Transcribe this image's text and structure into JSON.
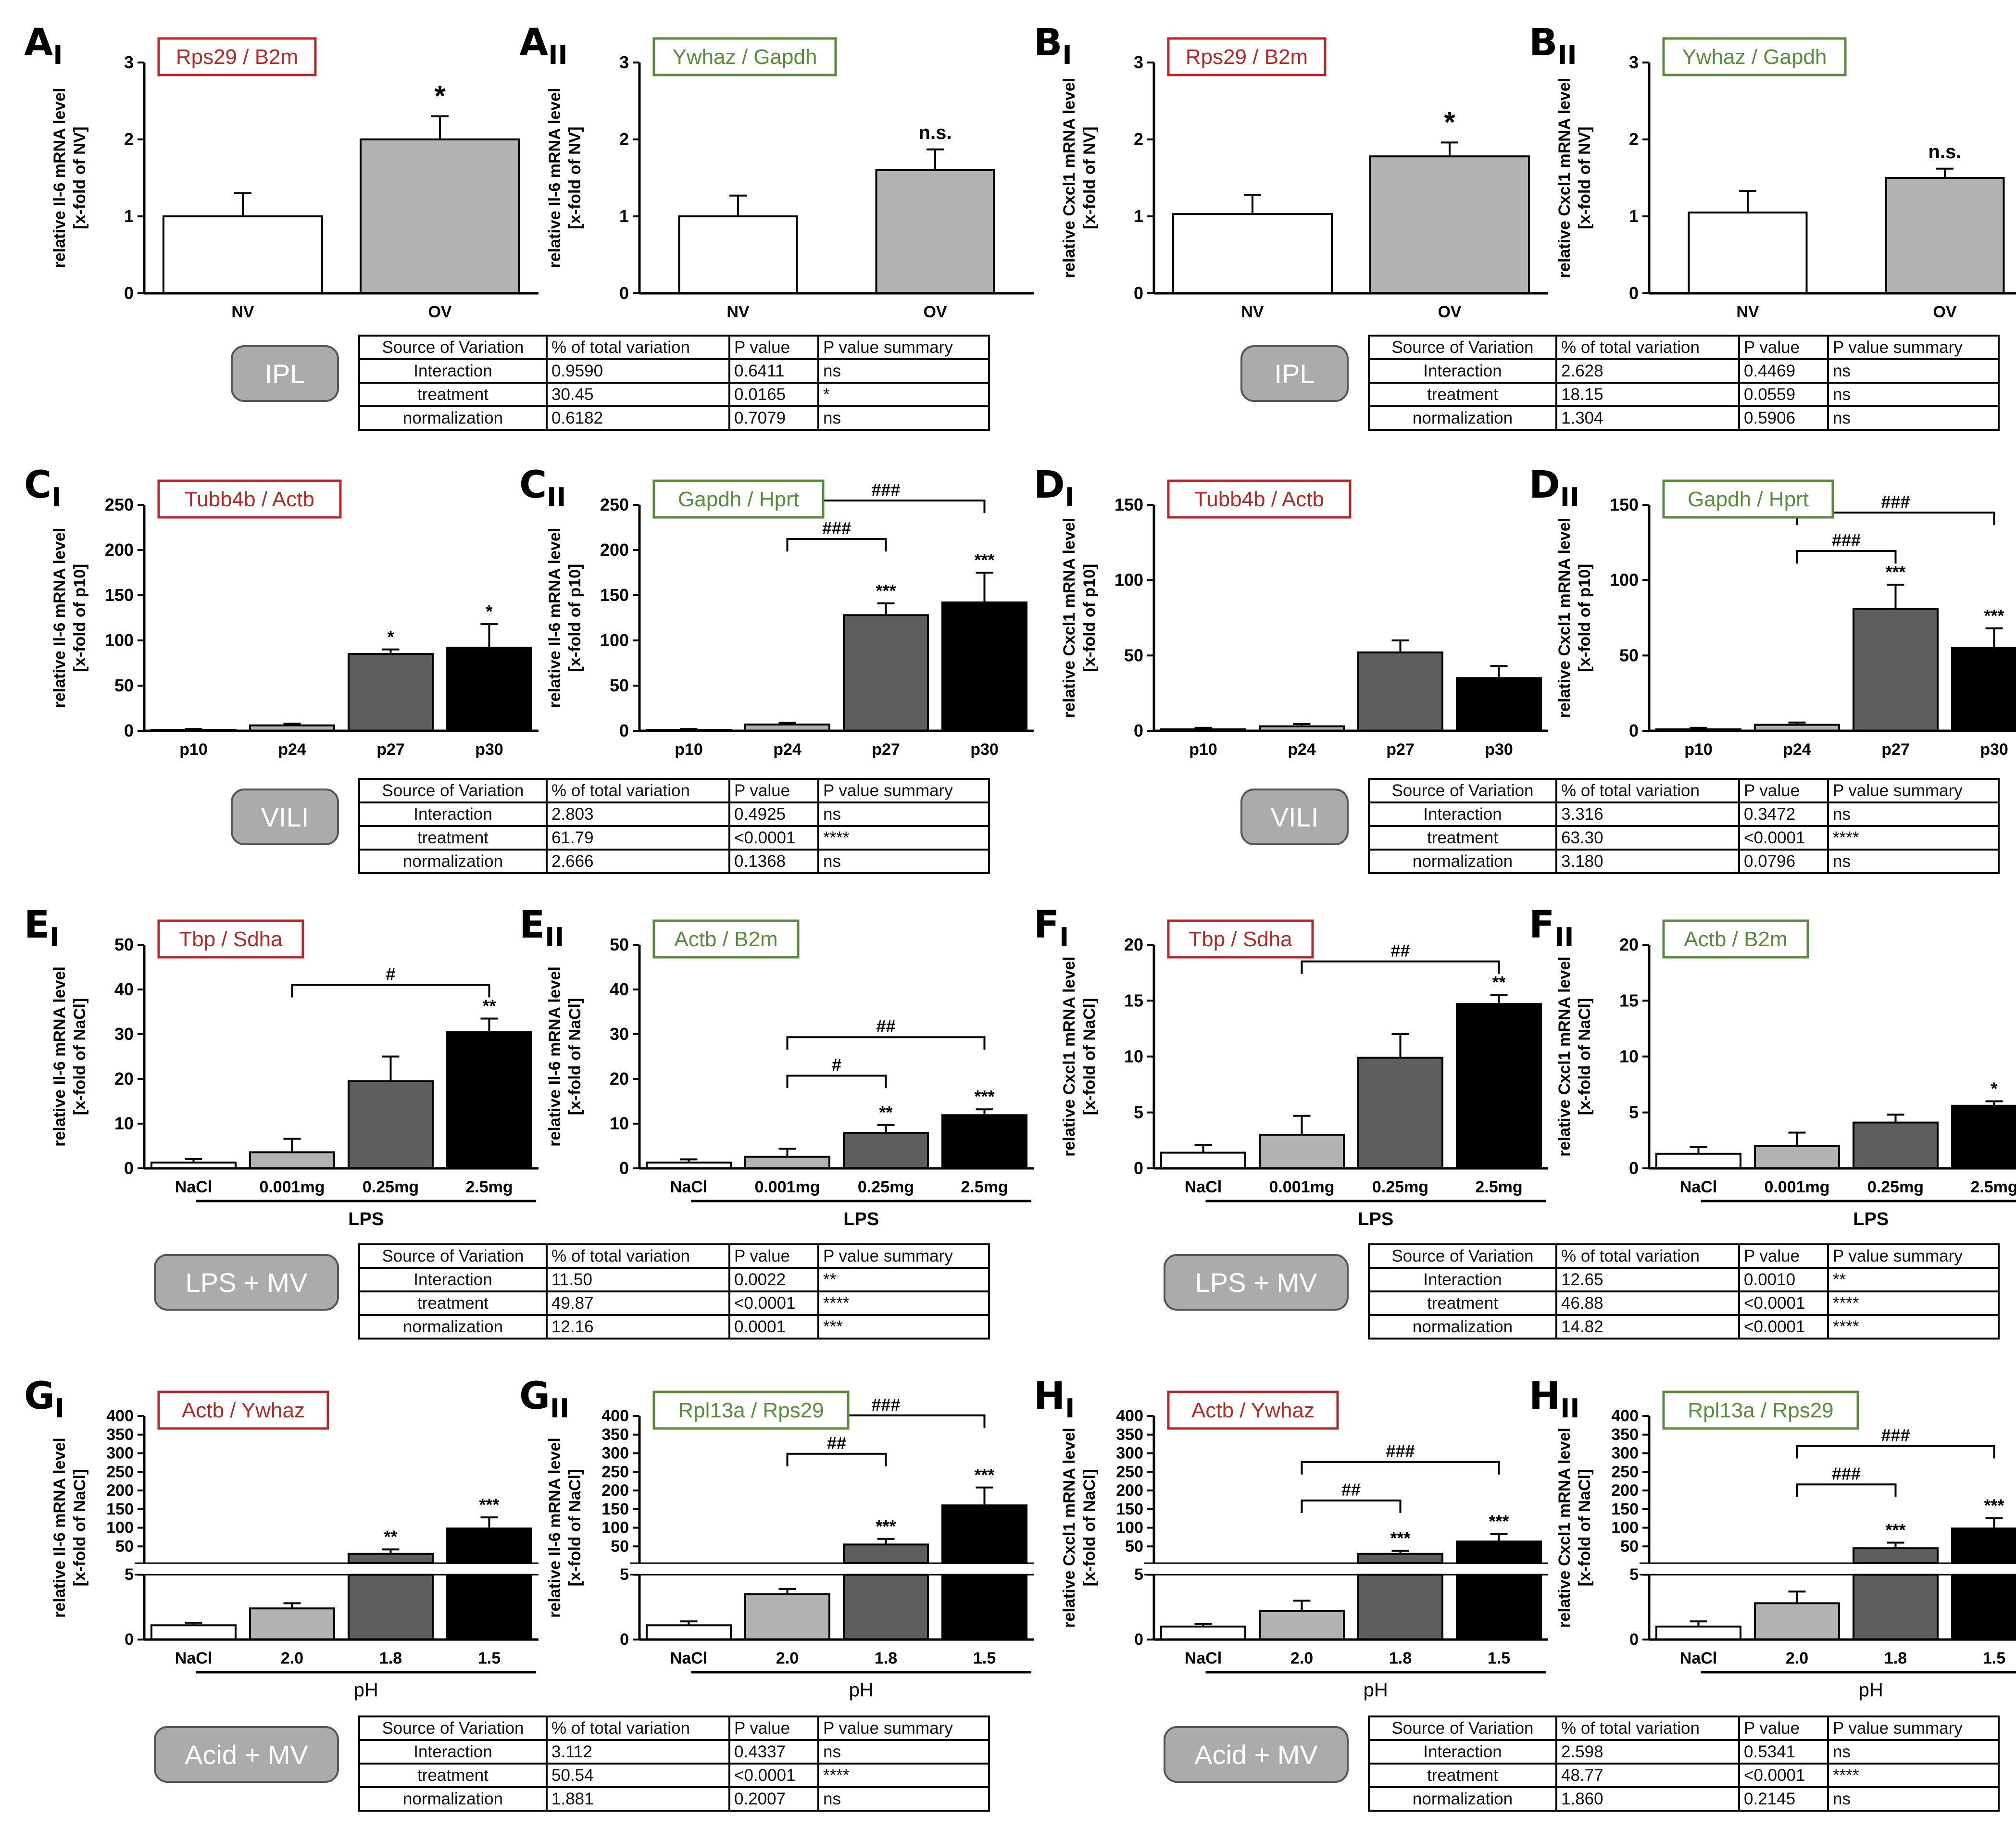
{
  "col_headers": [
    "Source of Variation",
    "% of total variation",
    "P value",
    "P value summary"
  ],
  "rows": [
    {
      "id": "AB",
      "groups": [
        "IPL",
        "IPL"
      ],
      "tables": [
        [
          [
            "Interaction",
            "0.9590",
            "0.6411",
            "ns"
          ],
          [
            "treatment",
            "30.45",
            "0.0165",
            "*"
          ],
          [
            "normalization",
            "0.6182",
            "0.7079",
            "ns"
          ]
        ],
        [
          [
            "Interaction",
            "2.628",
            "0.4469",
            "ns"
          ],
          [
            "treatment",
            "18.15",
            "0.0559",
            "ns"
          ],
          [
            "normalization",
            "1.304",
            "0.5906",
            "ns"
          ]
        ]
      ]
    },
    {
      "id": "CD",
      "groups": [
        "VILI",
        "VILI"
      ],
      "tables": [
        [
          [
            "Interaction",
            "2.803",
            "0.4925",
            "ns"
          ],
          [
            "treatment",
            "61.79",
            "<0.0001",
            "****"
          ],
          [
            "normalization",
            "2.666",
            "0.1368",
            "ns"
          ]
        ],
        [
          [
            "Interaction",
            "3.316",
            "0.3472",
            "ns"
          ],
          [
            "treatment",
            "63.30",
            "<0.0001",
            "****"
          ],
          [
            "normalization",
            "3.180",
            "0.0796",
            "ns"
          ]
        ]
      ]
    },
    {
      "id": "EF",
      "groups": [
        "LPS + MV",
        "LPS + MV"
      ],
      "tables": [
        [
          [
            "Interaction",
            "11.50",
            "0.0022",
            "**"
          ],
          [
            "treatment",
            "49.87",
            "<0.0001",
            "****"
          ],
          [
            "normalization",
            "12.16",
            "0.0001",
            "***"
          ]
        ],
        [
          [
            "Interaction",
            "12.65",
            "0.0010",
            "**"
          ],
          [
            "treatment",
            "46.88",
            "<0.0001",
            "****"
          ],
          [
            "normalization",
            "14.82",
            "<0.0001",
            "****"
          ]
        ]
      ]
    },
    {
      "id": "GH",
      "groups": [
        "Acid + MV",
        "Acid + MV"
      ],
      "tables": [
        [
          [
            "Interaction",
            "3.112",
            "0.4337",
            "ns"
          ],
          [
            "treatment",
            "50.54",
            "<0.0001",
            "****"
          ],
          [
            "normalization",
            "1.881",
            "0.2007",
            "ns"
          ]
        ],
        [
          [
            "Interaction",
            "2.598",
            "0.5341",
            "ns"
          ],
          [
            "treatment",
            "48.77",
            "<0.0001",
            "****"
          ],
          [
            "normalization",
            "1.860",
            "0.2145",
            "ns"
          ]
        ]
      ]
    }
  ],
  "colors": {
    "white": "#ffffff",
    "light": "#b2b2b4",
    "mid": "#5e5e60",
    "dark": "#000000",
    "red": "#b02a2a",
    "green": "#5a8a3c"
  },
  "chart_data": [
    {
      "panel": "A",
      "sub": "I",
      "type": "bar",
      "ref": "Rps29 / B2m",
      "ref_color": "red",
      "ylabel": [
        "relative Il-6 mRNA level",
        "[x-fold of NV]"
      ],
      "categories": [
        "NV",
        "OV"
      ],
      "values": [
        1.0,
        2.0
      ],
      "errors": [
        0.3,
        0.3
      ],
      "bar_colors": [
        "white",
        "light"
      ],
      "stars": [
        "",
        "*"
      ],
      "ylim": [
        0,
        3
      ],
      "yticks": [
        "0",
        "1",
        "2",
        "3"
      ]
    },
    {
      "panel": "A",
      "sub": "II",
      "type": "bar",
      "ref": "Ywhaz / Gapdh",
      "ref_color": "green",
      "ylabel": [
        "relative Il-6 mRNA level",
        "[x-fold of NV]"
      ],
      "categories": [
        "NV",
        "OV"
      ],
      "values": [
        1.0,
        1.6
      ],
      "errors": [
        0.27,
        0.27
      ],
      "bar_colors": [
        "white",
        "light"
      ],
      "stars": [
        "",
        "n.s."
      ],
      "ylim": [
        0,
        3
      ],
      "yticks": [
        "0",
        "1",
        "2",
        "3"
      ]
    },
    {
      "panel": "B",
      "sub": "I",
      "type": "bar",
      "ref": "Rps29 / B2m",
      "ref_color": "red",
      "ylabel": [
        "relative Cxcl1 mRNA level",
        "[x-fold of NV]"
      ],
      "categories": [
        "NV",
        "OV"
      ],
      "values": [
        1.03,
        1.78
      ],
      "errors": [
        0.25,
        0.18
      ],
      "bar_colors": [
        "white",
        "light"
      ],
      "stars": [
        "",
        "*"
      ],
      "ylim": [
        0,
        3
      ],
      "yticks": [
        "0",
        "1",
        "2",
        "3"
      ]
    },
    {
      "panel": "B",
      "sub": "II",
      "type": "bar",
      "ref": "Ywhaz / Gapdh",
      "ref_color": "green",
      "ylabel": [
        "relative Cxcl1 mRNA level",
        "[x-fold of NV]"
      ],
      "categories": [
        "NV",
        "OV"
      ],
      "values": [
        1.05,
        1.5
      ],
      "errors": [
        0.28,
        0.12
      ],
      "bar_colors": [
        "white",
        "light"
      ],
      "stars": [
        "",
        "n.s."
      ],
      "ylim": [
        0,
        3
      ],
      "yticks": [
        "0",
        "1",
        "2",
        "3"
      ]
    },
    {
      "panel": "C",
      "sub": "I",
      "type": "bar",
      "ref": "Tubb4b / Actb",
      "ref_color": "red",
      "ylabel": [
        "relative Il-6 mRNA level",
        "[x-fold of p10]"
      ],
      "categories": [
        "p10",
        "p24",
        "p27",
        "p30"
      ],
      "values": [
        1,
        6,
        85,
        92
      ],
      "errors": [
        1,
        2,
        5,
        26
      ],
      "bar_colors": [
        "white",
        "light",
        "mid",
        "dark"
      ],
      "stars": [
        "",
        "",
        "*",
        "*"
      ],
      "ylim": [
        0,
        250
      ],
      "yticks": [
        "0",
        "50",
        "100",
        "150",
        "200",
        "250"
      ]
    },
    {
      "panel": "C",
      "sub": "II",
      "type": "bar",
      "ref": "Gapdh / Hprt",
      "ref_color": "green",
      "ylabel": [
        "relative Il-6 mRNA level",
        "[x-fold of p10]"
      ],
      "categories": [
        "p10",
        "p24",
        "p27",
        "p30"
      ],
      "values": [
        1,
        7,
        128,
        142
      ],
      "errors": [
        1,
        2,
        13,
        33
      ],
      "bar_colors": [
        "white",
        "light",
        "mid",
        "dark"
      ],
      "stars": [
        "",
        "",
        "***",
        "***"
      ],
      "ylim": [
        0,
        250
      ],
      "yticks": [
        "0",
        "50",
        "100",
        "150",
        "200",
        "250"
      ],
      "brackets": [
        {
          "from": 1,
          "to": 2,
          "label": "###"
        },
        {
          "from": 1,
          "to": 3,
          "label": "###"
        }
      ]
    },
    {
      "panel": "D",
      "sub": "I",
      "type": "bar",
      "ref": "Tubb4b / Actb",
      "ref_color": "red",
      "ylabel": [
        "relative Cxcl1 mRNA level",
        "[x-fold of p10]"
      ],
      "categories": [
        "p10",
        "p24",
        "p27",
        "p30"
      ],
      "values": [
        1,
        3,
        52,
        35
      ],
      "errors": [
        1,
        1.5,
        8,
        8
      ],
      "bar_colors": [
        "white",
        "light",
        "mid",
        "dark"
      ],
      "stars": [
        "",
        "",
        "",
        ""
      ],
      "ylim": [
        0,
        150
      ],
      "yticks": [
        "0",
        "50",
        "100",
        "150"
      ]
    },
    {
      "panel": "D",
      "sub": "II",
      "type": "bar",
      "ref": "Gapdh / Hprt",
      "ref_color": "green",
      "ylabel": [
        "relative Cxcl1 mRNA level",
        "[x-fold of p10]"
      ],
      "categories": [
        "p10",
        "p24",
        "p27",
        "p30"
      ],
      "values": [
        1,
        4,
        81,
        55
      ],
      "errors": [
        1,
        1.5,
        16,
        13
      ],
      "bar_colors": [
        "white",
        "light",
        "mid",
        "dark"
      ],
      "stars": [
        "",
        "",
        "***",
        "***"
      ],
      "ylim": [
        0,
        150
      ],
      "yticks": [
        "0",
        "50",
        "100",
        "150"
      ],
      "brackets": [
        {
          "from": 1,
          "to": 2,
          "label": "###"
        },
        {
          "from": 1,
          "to": 3,
          "label": "###"
        }
      ]
    },
    {
      "panel": "E",
      "sub": "I",
      "type": "bar",
      "ref": "Tbp / Sdha",
      "ref_color": "red",
      "ylabel": [
        "relative Il-6 mRNA level",
        "[x-fold of NaCl]"
      ],
      "categories": [
        "NaCl",
        "0.001mg",
        "0.25mg",
        "2.5mg"
      ],
      "group_label": "LPS",
      "values": [
        1.3,
        3.6,
        19.5,
        30.5
      ],
      "errors": [
        0.8,
        3,
        5.5,
        3
      ],
      "bar_colors": [
        "white",
        "light",
        "mid",
        "dark"
      ],
      "stars": [
        "",
        "",
        "",
        "**"
      ],
      "ylim": [
        0,
        50
      ],
      "yticks": [
        "0",
        "10",
        "20",
        "30",
        "40",
        "50"
      ],
      "brackets": [
        {
          "from": 1,
          "to": 3,
          "label": "#"
        }
      ]
    },
    {
      "panel": "E",
      "sub": "II",
      "type": "bar",
      "ref": "Actb / B2m",
      "ref_color": "green",
      "ylabel": [
        "relative Il-6 mRNA level",
        "[x-fold of NaCl]"
      ],
      "categories": [
        "NaCl",
        "0.001mg",
        "0.25mg",
        "2.5mg"
      ],
      "group_label": "LPS",
      "values": [
        1.3,
        2.6,
        7.9,
        11.9
      ],
      "errors": [
        0.7,
        1.8,
        1.8,
        1.3
      ],
      "bar_colors": [
        "white",
        "light",
        "mid",
        "dark"
      ],
      "stars": [
        "",
        "",
        "**",
        "***"
      ],
      "ylim": [
        0,
        50
      ],
      "yticks": [
        "0",
        "10",
        "20",
        "30",
        "40",
        "50"
      ],
      "brackets": [
        {
          "from": 1,
          "to": 2,
          "label": "#"
        },
        {
          "from": 1,
          "to": 3,
          "label": "##"
        }
      ]
    },
    {
      "panel": "F",
      "sub": "I",
      "type": "bar",
      "ref": "Tbp / Sdha",
      "ref_color": "red",
      "ylabel": [
        "relative Cxcl1 mRNA level",
        "[x-fold of NaCl]"
      ],
      "categories": [
        "NaCl",
        "0.001mg",
        "0.25mg",
        "2.5mg"
      ],
      "group_label": "LPS",
      "values": [
        1.4,
        3.0,
        9.9,
        14.7
      ],
      "errors": [
        0.7,
        1.7,
        2.1,
        0.8
      ],
      "bar_colors": [
        "white",
        "light",
        "mid",
        "dark"
      ],
      "stars": [
        "",
        "",
        "",
        "**"
      ],
      "ylim": [
        0,
        20
      ],
      "yticks": [
        "0",
        "5",
        "10",
        "15",
        "20"
      ],
      "brackets": [
        {
          "from": 1,
          "to": 3,
          "label": "##"
        }
      ]
    },
    {
      "panel": "F",
      "sub": "II",
      "type": "bar",
      "ref": "Actb / B2m",
      "ref_color": "green",
      "ylabel": [
        "relative Cxcl1 mRNA level",
        "[x-fold of NaCl]"
      ],
      "categories": [
        "NaCl",
        "0.001mg",
        "0.25mg",
        "2.5mg"
      ],
      "group_label": "LPS",
      "values": [
        1.3,
        2.0,
        4.1,
        5.6
      ],
      "errors": [
        0.6,
        1.2,
        0.7,
        0.4
      ],
      "bar_colors": [
        "white",
        "light",
        "mid",
        "dark"
      ],
      "stars": [
        "",
        "",
        "",
        "*"
      ],
      "ylim": [
        0,
        20
      ],
      "yticks": [
        "0",
        "5",
        "10",
        "15",
        "20"
      ]
    },
    {
      "panel": "G",
      "sub": "I",
      "type": "bar",
      "scale": "broken",
      "ref": "Actb / Ywhaz",
      "ref_color": "red",
      "ylabel": [
        "relative Il-6 mRNA level",
        "[x-fold of NaCl]"
      ],
      "categories": [
        "NaCl",
        "2.0",
        "1.8",
        "1.5"
      ],
      "group_label": "pH",
      "values": [
        1.1,
        2.4,
        30,
        98
      ],
      "errors": [
        0.2,
        0.4,
        12,
        30
      ],
      "bar_colors": [
        "white",
        "light",
        "mid",
        "dark"
      ],
      "stars": [
        "",
        "",
        "**",
        "***"
      ],
      "ylim_lower": [
        0,
        5
      ],
      "ylim_upper": [
        5,
        400
      ],
      "yticks": [
        "0",
        "5",
        "50",
        "100",
        "150",
        "200",
        "250",
        "300",
        "350",
        "400"
      ]
    },
    {
      "panel": "G",
      "sub": "II",
      "type": "bar",
      "scale": "broken",
      "ref": "Rpl13a / Rps29",
      "ref_color": "green",
      "ylabel": [
        "relative Il-6 mRNA level",
        "[x-fold of NaCl]"
      ],
      "categories": [
        "NaCl",
        "2.0",
        "1.8",
        "1.5"
      ],
      "group_label": "pH",
      "values": [
        1.1,
        3.5,
        55,
        160
      ],
      "errors": [
        0.3,
        0.4,
        15,
        48
      ],
      "bar_colors": [
        "white",
        "light",
        "mid",
        "dark"
      ],
      "stars": [
        "",
        "",
        "***",
        "***"
      ],
      "ylim_lower": [
        0,
        5
      ],
      "ylim_upper": [
        5,
        400
      ],
      "yticks": [
        "0",
        "5",
        "50",
        "100",
        "150",
        "200",
        "250",
        "300",
        "350",
        "400"
      ],
      "brackets": [
        {
          "from": 1,
          "to": 2,
          "label": "##"
        },
        {
          "from": 1,
          "to": 3,
          "label": "###"
        }
      ]
    },
    {
      "panel": "H",
      "sub": "I",
      "type": "bar",
      "scale": "broken",
      "ref": "Actb / Ywhaz",
      "ref_color": "red",
      "ylabel": [
        "relative Cxcl1 mRNA level",
        "[x-fold of NaCl]"
      ],
      "categories": [
        "NaCl",
        "2.0",
        "1.8",
        "1.5"
      ],
      "group_label": "pH",
      "values": [
        1.0,
        2.2,
        30,
        63
      ],
      "errors": [
        0.2,
        0.8,
        8,
        20
      ],
      "bar_colors": [
        "white",
        "light",
        "mid",
        "dark"
      ],
      "stars": [
        "",
        "",
        "***",
        "***"
      ],
      "ylim_lower": [
        0,
        5
      ],
      "ylim_upper": [
        5,
        400
      ],
      "yticks": [
        "0",
        "5",
        "50",
        "100",
        "150",
        "200",
        "250",
        "300",
        "350",
        "400"
      ],
      "brackets": [
        {
          "from": 1,
          "to": 2,
          "label": "##"
        },
        {
          "from": 1,
          "to": 3,
          "label": "###"
        }
      ]
    },
    {
      "panel": "H",
      "sub": "II",
      "type": "bar",
      "scale": "broken",
      "ref": "Rpl13a / Rps29",
      "ref_color": "green",
      "ylabel": [
        "relative Cxcl1 mRNA level",
        "[x-fold of NaCl]"
      ],
      "categories": [
        "NaCl",
        "2.0",
        "1.8",
        "1.5"
      ],
      "group_label": "pH",
      "values": [
        1.0,
        2.8,
        45,
        98
      ],
      "errors": [
        0.4,
        0.9,
        15,
        28
      ],
      "bar_colors": [
        "white",
        "light",
        "mid",
        "dark"
      ],
      "stars": [
        "",
        "",
        "***",
        "***"
      ],
      "ylim_lower": [
        0,
        5
      ],
      "ylim_upper": [
        5,
        400
      ],
      "yticks": [
        "0",
        "5",
        "50",
        "100",
        "150",
        "200",
        "250",
        "300",
        "350",
        "400"
      ],
      "brackets": [
        {
          "from": 1,
          "to": 2,
          "label": "###"
        },
        {
          "from": 1,
          "to": 3,
          "label": "###"
        }
      ]
    }
  ]
}
